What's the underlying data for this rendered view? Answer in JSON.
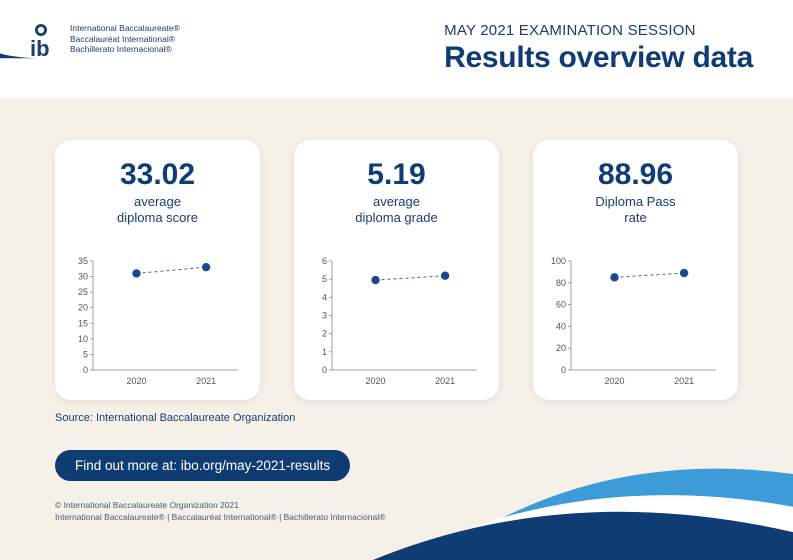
{
  "colors": {
    "brand_navy": "#0f3d73",
    "brand_navy_text": "#1a3e6e",
    "page_bg": "#f5f0e8",
    "card_bg": "#ffffff",
    "axis_gray": "#888888",
    "tick_text": "#555555",
    "marker": "#1a4a8a",
    "dash_line": "#3a6aa8",
    "swoosh_light": "#3d9bd8",
    "swoosh_dark": "#0f3d73",
    "swoosh_white": "#ffffff"
  },
  "header": {
    "logo_lines": [
      "International Baccalaureate®",
      "Baccalauréat International®",
      "Bachillerato Internacional®"
    ],
    "subtitle": "MAY 2021 EXAMINATION SESSION",
    "title": "Results overview data"
  },
  "cards": [
    {
      "value": "33.02",
      "label_line1": "average",
      "label_line2": "diploma score",
      "chart": {
        "type": "line",
        "x_labels": [
          "2020",
          "2021"
        ],
        "y_min": 0,
        "y_max": 35,
        "y_step": 5,
        "points": [
          {
            "x": "2020",
            "y": 31.0
          },
          {
            "x": "2021",
            "y": 33.02
          }
        ],
        "marker_color": "#1a4a8a",
        "marker_size": 4.2,
        "dash_color": "#3a6aa8",
        "axis_color": "#888888",
        "tick_fontsize": 9
      }
    },
    {
      "value": "5.19",
      "label_line1": "average",
      "label_line2": "diploma grade",
      "chart": {
        "type": "line",
        "x_labels": [
          "2020",
          "2021"
        ],
        "y_min": 0,
        "y_max": 6,
        "y_step": 1,
        "points": [
          {
            "x": "2020",
            "y": 4.95
          },
          {
            "x": "2021",
            "y": 5.19
          }
        ],
        "marker_color": "#1a4a8a",
        "marker_size": 4.2,
        "dash_color": "#3a6aa8",
        "axis_color": "#888888",
        "tick_fontsize": 9
      }
    },
    {
      "value": "88.96",
      "label_line1": "Diploma Pass",
      "label_line2": "rate",
      "chart": {
        "type": "line",
        "x_labels": [
          "2020",
          "2021"
        ],
        "y_min": 0,
        "y_max": 100,
        "y_step": 20,
        "points": [
          {
            "x": "2020",
            "y": 85.0
          },
          {
            "x": "2021",
            "y": 88.96
          }
        ],
        "marker_color": "#1a4a8a",
        "marker_size": 4.2,
        "dash_color": "#3a6aa8",
        "axis_color": "#888888",
        "tick_fontsize": 9
      }
    }
  ],
  "source": "Source: International Baccalaureate Organization",
  "cta": "Find out more at: ibo.org/may-2021-results",
  "footer": {
    "line1": "© International Baccalaureate Organization 2021",
    "line2": "International Baccalaureate®   |   Baccalauréat International®   |   Bachillerato Internacional®"
  }
}
